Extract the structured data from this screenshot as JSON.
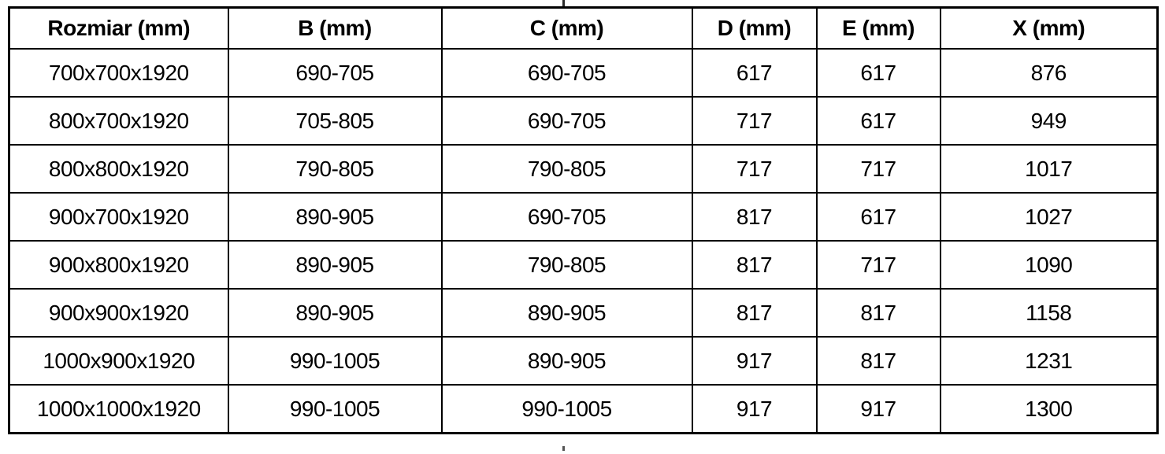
{
  "page": {
    "background_color": "#ffffff",
    "border_color": "#000000",
    "text_color": "#000000"
  },
  "table": {
    "headers": [
      "Rozmiar (mm)",
      "B (mm)",
      "C (mm)",
      "D (mm)",
      "E (mm)",
      "X (mm)"
    ],
    "rows": [
      [
        "700x700x1920",
        "690-705",
        "690-705",
        "617",
        "617",
        "876"
      ],
      [
        "800x700x1920",
        "705-805",
        "690-705",
        "717",
        "617",
        "949"
      ],
      [
        "800x800x1920",
        "790-805",
        "790-805",
        "717",
        "717",
        "1017"
      ],
      [
        "900x700x1920",
        "890-905",
        "690-705",
        "817",
        "617",
        "1027"
      ],
      [
        "900x800x1920",
        "890-905",
        "790-805",
        "817",
        "717",
        "1090"
      ],
      [
        "900x900x1920",
        "890-905",
        "890-905",
        "817",
        "817",
        "1158"
      ],
      [
        "1000x900x1920",
        "990-1005",
        "890-905",
        "917",
        "817",
        "1231"
      ],
      [
        "1000x1000x1920",
        "990-1005",
        "990-1005",
        "917",
        "917",
        "1300"
      ]
    ]
  }
}
